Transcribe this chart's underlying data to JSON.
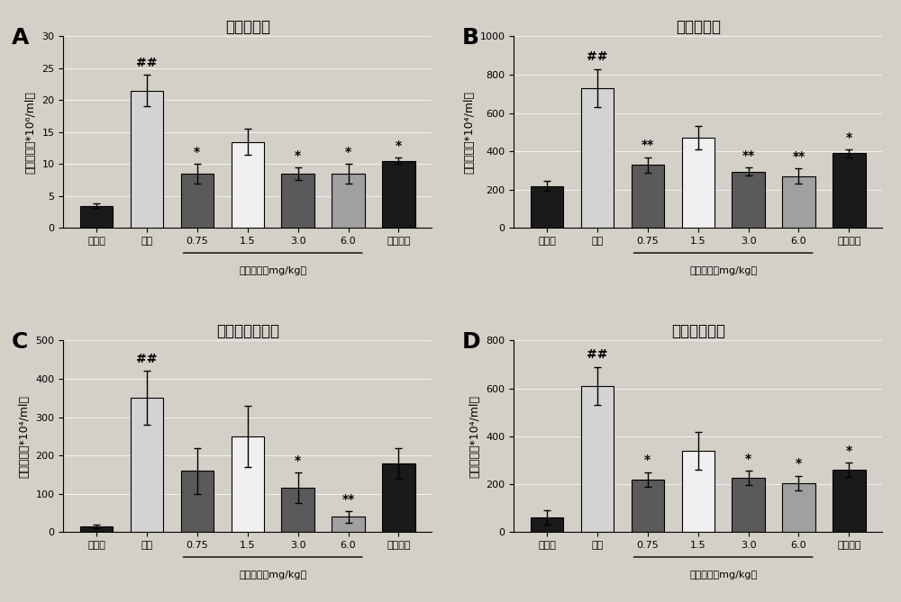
{
  "panels": [
    {
      "label": "A",
      "title": "总白细胞数",
      "ylabel_A": "细胞数量（*10⁶/ml）",
      "ylim": [
        0,
        30
      ],
      "yticks": [
        0,
        5,
        10,
        15,
        20,
        25,
        30
      ],
      "values": [
        3.5,
        21.5,
        8.5,
        13.5,
        8.5,
        8.5,
        10.5
      ],
      "errors": [
        0.3,
        2.5,
        1.5,
        2.0,
        1.0,
        1.5,
        0.5
      ],
      "sig_above": [
        "",
        "##",
        "*",
        "",
        "*",
        "*",
        "*"
      ],
      "colors": [
        "#1a1a1a",
        "#d3d3d3",
        "#5a5a5a",
        "#f0f0f0",
        "#5a5a5a",
        "#a0a0a0",
        "#1a1a1a"
      ]
    },
    {
      "label": "B",
      "title": "单核细胞数",
      "ylim": [
        0,
        1000
      ],
      "yticks": [
        0,
        200,
        400,
        600,
        800,
        1000
      ],
      "values": [
        220,
        730,
        330,
        470,
        295,
        270,
        390
      ],
      "errors": [
        25,
        100,
        40,
        60,
        20,
        40,
        20
      ],
      "sig_above": [
        "",
        "##",
        "**",
        "",
        "**",
        "**",
        "*"
      ],
      "colors": [
        "#1a1a1a",
        "#d3d3d3",
        "#5a5a5a",
        "#f0f0f0",
        "#5a5a5a",
        "#a0a0a0",
        "#1a1a1a"
      ]
    },
    {
      "label": "C",
      "title": "嗜碱性粒细胞数",
      "ylim": [
        0,
        500
      ],
      "yticks": [
        0,
        100,
        200,
        300,
        400,
        500
      ],
      "values": [
        15,
        350,
        160,
        250,
        115,
        40,
        180
      ],
      "errors": [
        5,
        70,
        60,
        80,
        40,
        15,
        40
      ],
      "sig_above": [
        "",
        "##",
        "",
        "",
        "*",
        "**",
        ""
      ],
      "colors": [
        "#1a1a1a",
        "#d3d3d3",
        "#5a5a5a",
        "#f0f0f0",
        "#5a5a5a",
        "#a0a0a0",
        "#1a1a1a"
      ]
    },
    {
      "label": "D",
      "title": "中性粒细胞数",
      "ylim": [
        0,
        800
      ],
      "yticks": [
        0,
        200,
        400,
        600,
        800
      ],
      "values": [
        60,
        610,
        220,
        340,
        225,
        205,
        260
      ],
      "errors": [
        30,
        80,
        30,
        80,
        30,
        30,
        30
      ],
      "sig_above": [
        "",
        "##",
        "*",
        "",
        "*",
        "*",
        "*"
      ],
      "colors": [
        "#1a1a1a",
        "#d3d3d3",
        "#5a5a5a",
        "#f0f0f0",
        "#5a5a5a",
        "#a0a0a0",
        "#1a1a1a"
      ]
    }
  ],
  "xticklabels": [
    "假手术",
    "模型",
    "0.75",
    "1.5",
    "3.0",
    "6.0",
    "吡非尼酮"
  ],
  "ylabel_A": "细胞数量（*10⁶/ml）",
  "ylabel_rest": "细胞数量（*10⁴/ml）",
  "xlabel_sub": "卢帕他定（mg/kg）",
  "xlabel_sub_range": [
    2,
    5
  ],
  "background_color": "#d4d0c8",
  "bar_edge_color": "#000000",
  "error_color": "#000000",
  "sig_fontsize": 10,
  "title_fontsize": 12,
  "label_fontsize": 18,
  "tick_fontsize": 8,
  "ylabel_fontsize": 9
}
